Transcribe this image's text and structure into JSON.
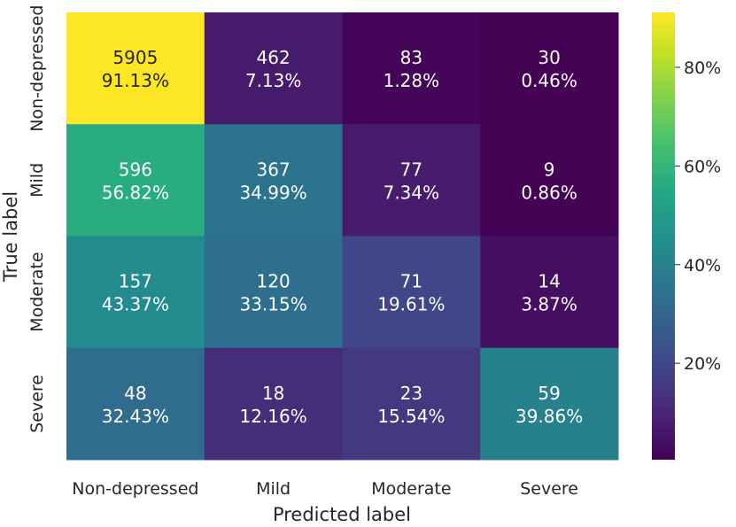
{
  "chart_data": {
    "type": "heatmap",
    "title": "",
    "xlabel": "Predicted label",
    "ylabel": "True label",
    "x_categories": [
      "Non-depressed",
      "Mild",
      "Moderate",
      "Severe"
    ],
    "y_categories": [
      "Non-depressed",
      "Mild",
      "Moderate",
      "Severe"
    ],
    "counts": [
      [
        5905,
        462,
        83,
        30
      ],
      [
        596,
        367,
        77,
        9
      ],
      [
        157,
        120,
        71,
        14
      ],
      [
        48,
        18,
        23,
        59
      ]
    ],
    "percent_labels": [
      [
        "91.13%",
        "7.13%",
        "1.28%",
        "0.46%"
      ],
      [
        "56.82%",
        "34.99%",
        "7.34%",
        "0.86%"
      ],
      [
        "43.37%",
        "33.15%",
        "19.61%",
        "3.87%"
      ],
      [
        "32.43%",
        "12.16%",
        "15.54%",
        "39.86%"
      ]
    ],
    "colorbar": {
      "colormap": "viridis",
      "vmin": 0.46,
      "vmax": 91.13,
      "ticks": [
        20,
        40,
        60,
        80
      ],
      "tick_labels": [
        "20%",
        "40%",
        "60%",
        "80%"
      ]
    }
  }
}
